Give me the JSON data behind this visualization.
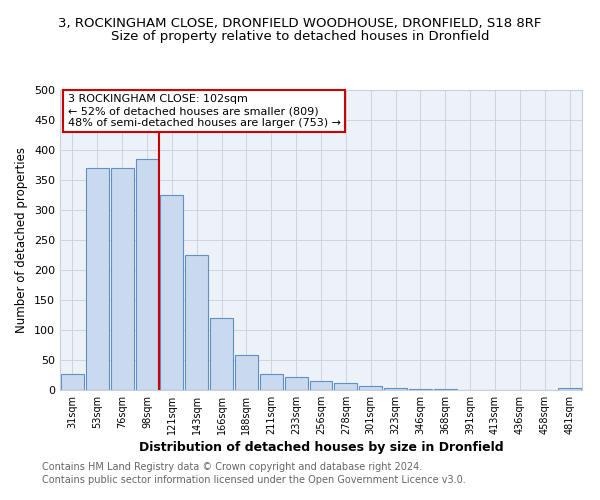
{
  "title_line1": "3, ROCKINGHAM CLOSE, DRONFIELD WOODHOUSE, DRONFIELD, S18 8RF",
  "title_line2": "Size of property relative to detached houses in Dronfield",
  "xlabel": "Distribution of detached houses by size in Dronfield",
  "ylabel": "Number of detached properties",
  "bar_labels": [
    "31sqm",
    "53sqm",
    "76sqm",
    "98sqm",
    "121sqm",
    "143sqm",
    "166sqm",
    "188sqm",
    "211sqm",
    "233sqm",
    "256sqm",
    "278sqm",
    "301sqm",
    "323sqm",
    "346sqm",
    "368sqm",
    "391sqm",
    "413sqm",
    "436sqm",
    "458sqm",
    "481sqm"
  ],
  "bar_values": [
    27,
    370,
    370,
    385,
    325,
    225,
    120,
    58,
    27,
    22,
    15,
    12,
    7,
    4,
    2,
    1,
    0,
    0,
    0,
    0,
    3
  ],
  "bar_color": "#c9d9ee",
  "bar_edge_color": "#6090c8",
  "vline_x": 3.5,
  "vline_color": "#cc0000",
  "annotation_text": "3 ROCKINGHAM CLOSE: 102sqm\n← 52% of detached houses are smaller (809)\n48% of semi-detached houses are larger (753) →",
  "annotation_box_color": "#ffffff",
  "annotation_box_edge": "#cc0000",
  "ylim": [
    0,
    500
  ],
  "yticks": [
    0,
    50,
    100,
    150,
    200,
    250,
    300,
    350,
    400,
    450,
    500
  ],
  "grid_color": "#c8d0dc",
  "bg_color": "#edf1f8",
  "footer_line1": "Contains HM Land Registry data © Crown copyright and database right 2024.",
  "footer_line2": "Contains public sector information licensed under the Open Government Licence v3.0.",
  "title_fontsize": 9.5,
  "subtitle_fontsize": 9.5,
  "annotation_fontsize": 8,
  "footer_fontsize": 7,
  "xlabel_fontsize": 9,
  "ylabel_fontsize": 8.5,
  "xtick_fontsize": 7,
  "ytick_fontsize": 8
}
